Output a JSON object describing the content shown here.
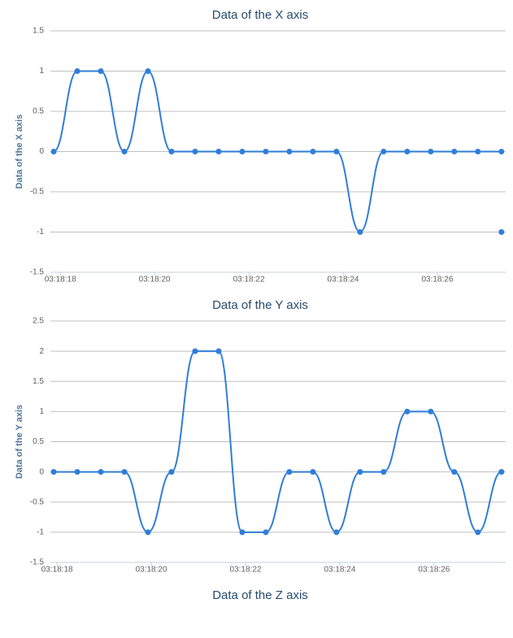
{
  "chart_data": [
    {
      "type": "line",
      "title": "Data of the X axis",
      "y_label": "Data of the X axis",
      "xlim": [
        17.79,
        27.45
      ],
      "ylim": [
        -1.5,
        1.5
      ],
      "xticks": [
        {
          "value": 18,
          "label": "03:18:18"
        },
        {
          "value": 20,
          "label": "03:18:20"
        },
        {
          "value": 22,
          "label": "03:18:22"
        },
        {
          "value": 24,
          "label": "03:18:24"
        },
        {
          "value": 26,
          "label": "03:18:26"
        }
      ],
      "yticks": [
        -1.5,
        -1,
        -0.5,
        0,
        0.5,
        1,
        1.5
      ],
      "grid": true,
      "series": [
        {
          "color": "#2f7ed8",
          "x": [
            17.86,
            18.36,
            18.86,
            19.36,
            19.86,
            20.36,
            20.86,
            21.36,
            21.86,
            22.36,
            22.86,
            23.36,
            23.86,
            24.36,
            24.86,
            25.36,
            25.86,
            26.36,
            26.86,
            27.36
          ],
          "values": [
            0,
            1,
            1,
            0,
            1,
            0,
            0,
            0,
            0,
            0,
            0,
            0,
            0,
            -1,
            0,
            0,
            0,
            0,
            0,
            0
          ]
        },
        {
          "color": "#2f7ed8",
          "x": [
            27.36
          ],
          "values": [
            -1
          ]
        }
      ]
    },
    {
      "type": "line",
      "title": "Data of the Y axis",
      "y_label": "Data of the Y axis",
      "xlim": [
        17.86,
        27.52
      ],
      "ylim": [
        -1.5,
        2.5
      ],
      "xticks": [
        {
          "value": 18,
          "label": "03:18:18"
        },
        {
          "value": 20,
          "label": "03:18:20"
        },
        {
          "value": 22,
          "label": "03:18:22"
        },
        {
          "value": 24,
          "label": "03:18:24"
        },
        {
          "value": 26,
          "label": "03:18:26"
        }
      ],
      "yticks": [
        -1.5,
        -1,
        -0.5,
        0,
        0.5,
        1,
        1.5,
        2,
        2.5
      ],
      "grid": true,
      "series": [
        {
          "color": "#2f7ed8",
          "x": [
            17.93,
            18.43,
            18.93,
            19.43,
            19.93,
            20.43,
            20.93,
            21.43,
            21.93,
            22.43,
            22.93,
            23.43,
            23.93,
            24.43,
            24.93,
            25.43,
            25.93,
            26.43,
            26.93,
            27.43
          ],
          "values": [
            0,
            0,
            0,
            0,
            -1,
            0,
            2,
            2,
            -1,
            -1,
            0,
            0,
            -1,
            0,
            0,
            1,
            1,
            0,
            -1,
            0
          ]
        }
      ]
    },
    {
      "type": "line",
      "title": "Data of the Z axis"
    }
  ]
}
